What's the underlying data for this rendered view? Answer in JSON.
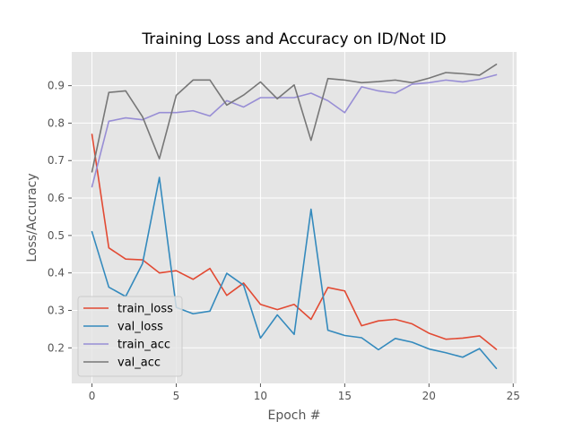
{
  "chart_data": {
    "type": "line",
    "title": "Training Loss and Accuracy on ID/Not ID",
    "xlabel": "Epoch #",
    "ylabel": "Loss/Accuracy",
    "xlim": [
      -1.2,
      25.2
    ],
    "ylim": [
      0.105,
      0.99
    ],
    "xticks": [
      0,
      5,
      10,
      15,
      20,
      25
    ],
    "yticks": [
      0.2,
      0.3,
      0.4,
      0.5,
      0.6,
      0.7,
      0.8,
      0.9
    ],
    "grid": true,
    "legend_position": "lower-left",
    "x": [
      0,
      1,
      2,
      3,
      4,
      5,
      6,
      7,
      8,
      9,
      10,
      11,
      12,
      13,
      14,
      15,
      16,
      17,
      18,
      19,
      20,
      21,
      22,
      23,
      24
    ],
    "series": [
      {
        "name": "train_loss",
        "color": "#e24a33",
        "values": [
          0.77,
          0.467,
          0.437,
          0.435,
          0.4,
          0.406,
          0.383,
          0.412,
          0.34,
          0.373,
          0.316,
          0.302,
          0.316,
          0.276,
          0.361,
          0.352,
          0.259,
          0.272,
          0.276,
          0.264,
          0.239,
          0.223,
          0.226,
          0.232,
          0.196
        ]
      },
      {
        "name": "val_loss",
        "color": "#348abd",
        "values": [
          0.51,
          0.362,
          0.337,
          0.425,
          0.655,
          0.308,
          0.291,
          0.298,
          0.399,
          0.367,
          0.226,
          0.288,
          0.236,
          0.57,
          0.247,
          0.233,
          0.227,
          0.195,
          0.225,
          0.215,
          0.197,
          0.187,
          0.175,
          0.198,
          0.145
        ]
      },
      {
        "name": "train_acc",
        "color": "#988ed5",
        "values": [
          0.63,
          0.805,
          0.814,
          0.809,
          0.828,
          0.828,
          0.833,
          0.819,
          0.86,
          0.843,
          0.868,
          0.868,
          0.868,
          0.88,
          0.86,
          0.828,
          0.897,
          0.886,
          0.88,
          0.904,
          0.908,
          0.915,
          0.91,
          0.917,
          0.929
        ]
      },
      {
        "name": "val_acc",
        "color": "#777777",
        "values": [
          0.67,
          0.882,
          0.886,
          0.817,
          0.705,
          0.874,
          0.915,
          0.915,
          0.848,
          0.875,
          0.91,
          0.865,
          0.902,
          0.754,
          0.919,
          0.915,
          0.908,
          0.911,
          0.915,
          0.908,
          0.92,
          0.935,
          0.932,
          0.928,
          0.957
        ]
      }
    ]
  }
}
